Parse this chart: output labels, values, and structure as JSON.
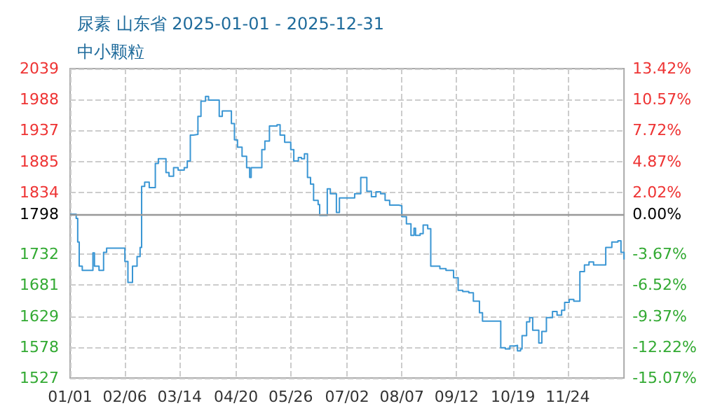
{
  "chart_data": {
    "type": "step",
    "title": "尿素 山东省 2025-01-01 - 2025-12-31",
    "subtitle": "中小颗粒",
    "x": [
      "2025-01-01",
      "2025-01-05",
      "2025-01-06",
      "2025-01-07",
      "2025-01-09",
      "2025-01-13",
      "2025-01-16",
      "2025-01-17",
      "2025-01-20",
      "2025-01-23",
      "2025-01-25",
      "2025-02-04",
      "2025-02-06",
      "2025-02-08",
      "2025-02-11",
      "2025-02-14",
      "2025-02-16",
      "2025-02-17",
      "2025-02-19",
      "2025-02-22",
      "2025-02-24",
      "2025-02-26",
      "2025-02-28",
      "2025-03-02",
      "2025-03-05",
      "2025-03-07",
      "2025-03-10",
      "2025-03-13",
      "2025-03-17",
      "2025-03-19",
      "2025-03-21",
      "2025-03-23",
      "2025-03-26",
      "2025-03-28",
      "2025-03-31",
      "2025-04-02",
      "2025-04-07",
      "2025-04-09",
      "2025-04-11",
      "2025-04-14",
      "2025-04-17",
      "2025-04-19",
      "2025-04-21",
      "2025-04-24",
      "2025-04-27",
      "2025-04-29",
      "2025-04-30",
      "2025-05-05",
      "2025-05-07",
      "2025-05-09",
      "2025-05-12",
      "2025-05-17",
      "2025-05-19",
      "2025-05-22",
      "2025-05-26",
      "2025-05-28",
      "2025-05-31",
      "2025-06-02",
      "2025-06-04",
      "2025-06-06",
      "2025-06-08",
      "2025-06-10",
      "2025-06-13",
      "2025-06-14",
      "2025-06-17",
      "2025-06-19",
      "2025-06-21",
      "2025-06-23",
      "2025-06-25",
      "2025-06-27",
      "2025-07-02",
      "2025-07-07",
      "2025-07-11",
      "2025-07-13",
      "2025-07-15",
      "2025-07-18",
      "2025-07-21",
      "2025-07-24",
      "2025-07-27",
      "2025-07-30",
      "2025-08-05",
      "2025-08-07",
      "2025-08-10",
      "2025-08-13",
      "2025-08-15",
      "2025-08-16",
      "2025-08-19",
      "2025-08-21",
      "2025-08-24",
      "2025-08-26",
      "2025-08-28",
      "2025-09-01",
      "2025-09-05",
      "2025-09-10",
      "2025-09-13",
      "2025-09-16",
      "2025-09-20",
      "2025-09-23",
      "2025-09-27",
      "2025-09-29",
      "2025-10-08",
      "2025-10-11",
      "2025-10-14",
      "2025-10-17",
      "2025-10-20",
      "2025-10-22",
      "2025-10-24",
      "2025-10-25",
      "2025-10-28",
      "2025-10-30",
      "2025-11-01",
      "2025-11-05",
      "2025-11-07",
      "2025-11-10",
      "2025-11-14",
      "2025-11-17",
      "2025-11-20",
      "2025-11-22",
      "2025-11-25",
      "2025-11-28",
      "2025-12-02",
      "2025-12-05",
      "2025-12-08",
      "2025-12-11",
      "2025-12-17",
      "2025-12-19",
      "2025-12-23",
      "2025-12-27",
      "2025-12-29",
      "2025-12-31"
    ],
    "series": [
      {
        "color": "#3a96d4",
        "values": [
          1798,
          1791,
          1752,
          1712,
          1705,
          1705,
          1734,
          1712,
          1705,
          1735,
          1742,
          1742,
          1720,
          1685,
          1712,
          1728,
          1743,
          1844,
          1851,
          1842,
          1842,
          1882,
          1890,
          1890,
          1867,
          1861,
          1875,
          1871,
          1875,
          1886,
          1929,
          1930,
          1960,
          1985,
          1993,
          1987,
          1987,
          1960,
          1969,
          1969,
          1948,
          1921,
          1909,
          1894,
          1875,
          1859,
          1875,
          1875,
          1905,
          1919,
          1944,
          1946,
          1929,
          1917,
          1905,
          1886,
          1892,
          1890,
          1898,
          1859,
          1848,
          1821,
          1814,
          1796,
          1796,
          1840,
          1832,
          1832,
          1801,
          1825,
          1825,
          1832,
          1859,
          1859,
          1836,
          1827,
          1835,
          1832,
          1821,
          1813,
          1812,
          1794,
          1782,
          1763,
          1775,
          1763,
          1766,
          1780,
          1774,
          1712,
          1712,
          1708,
          1705,
          1693,
          1672,
          1670,
          1668,
          1654,
          1635,
          1621,
          1621,
          1577,
          1575,
          1580,
          1581,
          1572,
          1575,
          1597,
          1620,
          1627,
          1606,
          1585,
          1604,
          1627,
          1637,
          1631,
          1639,
          1652,
          1657,
          1654,
          1703,
          1714,
          1719,
          1714,
          1714,
          1743,
          1752,
          1754,
          1735,
          1723
        ]
      }
    ],
    "xlim": [
      "2025-01-01",
      "2025-12-31"
    ],
    "xticks": [
      {
        "value": "2025-01-01",
        "label": "01/01"
      },
      {
        "value": "2025-02-06",
        "label": "02/06"
      },
      {
        "value": "2025-03-14",
        "label": "03/14"
      },
      {
        "value": "2025-04-20",
        "label": "04/20"
      },
      {
        "value": "2025-05-26",
        "label": "05/26"
      },
      {
        "value": "2025-07-02",
        "label": "07/02"
      },
      {
        "value": "2025-08-07",
        "label": "08/07"
      },
      {
        "value": "2025-09-12",
        "label": "09/12"
      },
      {
        "value": "2025-10-19",
        "label": "10/19"
      },
      {
        "value": "2025-11-24",
        "label": "11/24"
      }
    ],
    "ylim": [
      1527,
      2039
    ],
    "yticks": [
      1527,
      {
        "value": 1578.2,
        "label": "1578"
      },
      {
        "value": 1629.4,
        "label": "1629"
      },
      {
        "value": 1680.6,
        "label": "1681"
      },
      {
        "value": 1731.8,
        "label": "1732"
      },
      1798,
      {
        "value": 1834.2,
        "label": "1834"
      },
      {
        "value": 1885.4,
        "label": "1885"
      },
      {
        "value": 1936.6,
        "label": "1937"
      },
      {
        "value": 1987.8,
        "label": "1988"
      },
      2039
    ],
    "y2lim": [
      -15.07,
      13.42
    ],
    "y2ticks": [
      {
        "value": -15.07,
        "label": "-15.07%"
      },
      {
        "value": -12.22,
        "label": "-12.22%"
      },
      {
        "value": -9.37,
        "label": "-9.37%"
      },
      {
        "value": -6.52,
        "label": "-6.52%"
      },
      {
        "value": -3.67,
        "label": "-3.67%"
      },
      {
        "value": 0,
        "label": "0.00%"
      },
      {
        "value": 2.02,
        "label": "2.02%"
      },
      {
        "value": 4.87,
        "label": "4.87%"
      },
      {
        "value": 7.72,
        "label": "7.72%"
      },
      {
        "value": 10.57,
        "label": "10.57%"
      },
      {
        "value": 13.42,
        "label": "13.42%"
      }
    ],
    "ref_lines": [
      {
        "axis": "y",
        "value": 1798,
        "color": "#999999",
        "line_style": "solid"
      }
    ],
    "grid": true,
    "marker": "none",
    "line_style": "solid"
  }
}
